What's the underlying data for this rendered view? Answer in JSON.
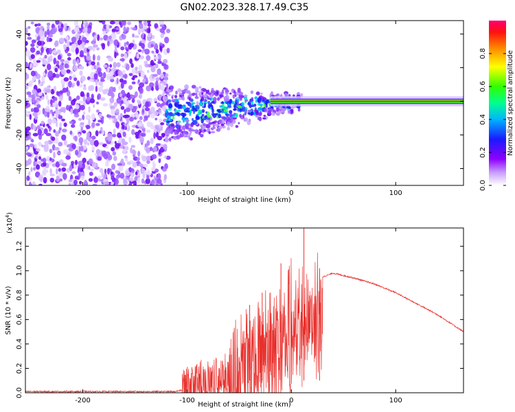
{
  "title": "GN02.2023.328.17.49.C35",
  "colors": {
    "snr_line": "#e8302c",
    "ridge": "#ff2020",
    "background": "#ffffff",
    "axis": "#000000"
  },
  "chart_data": [
    {
      "type": "heatmap",
      "name": "spectrogram",
      "xlabel": "Height of straight line (km)",
      "ylabel": "Frequency (Hz)",
      "xlim": [
        -255,
        165
      ],
      "ylim": [
        -50,
        48
      ],
      "xticks": [
        -200,
        -100,
        0,
        100
      ],
      "yticks": [
        -40,
        -20,
        0,
        20,
        40
      ],
      "xtick_labels": [
        "-200",
        "-100",
        "0",
        "100"
      ],
      "ytick_labels": [
        "-40",
        "-20",
        "0",
        "20",
        "40"
      ],
      "noise_region_x": [
        -255,
        -118
      ],
      "ridge": {
        "x": [
          -20,
          165
        ],
        "y": 0,
        "amplitude": 1.0
      },
      "colorbar": {
        "label": "Normalized spectral amplitude",
        "range": [
          0,
          1
        ],
        "ticks": [
          0.0,
          0.2,
          0.4,
          0.6,
          0.8
        ],
        "tick_labels": [
          "0.0",
          "0.2",
          "0.4",
          "0.6",
          "0.8"
        ],
        "colormap": [
          "#ffffff",
          "#8e00ff",
          "#1a1aff",
          "#00b4ff",
          "#00ff80",
          "#40ff00",
          "#ffff00",
          "#ff8000",
          "#ff0000",
          "#ff0080"
        ]
      }
    },
    {
      "type": "line",
      "name": "snr",
      "xlabel": "Height of straight line (km)",
      "ylabel": "SNR (10 * v/v)",
      "scale_label": "(x10",
      "scale_exponent": "4",
      "scale_suffix": ")",
      "xlim": [
        -255,
        165
      ],
      "ylim": [
        0,
        1.35
      ],
      "xticks": [
        -200,
        -100,
        0,
        100
      ],
      "yticks": [
        0.0,
        0.2,
        0.4,
        0.6,
        0.8,
        1.0,
        1.2
      ],
      "xtick_labels": [
        "-200",
        "-100",
        "0",
        "100"
      ],
      "ytick_labels": [
        "0.0",
        "0.2",
        "0.4",
        "0.6",
        "0.8",
        "1.0",
        "1.2"
      ],
      "series": [
        {
          "name": "SNR",
          "x": [
            -255,
            -200,
            -150,
            -110,
            -100,
            -90,
            -80,
            -70,
            -60,
            -50,
            -40,
            -30,
            -20,
            -10,
            0,
            10,
            20,
            30,
            40,
            50,
            60,
            80,
            100,
            120,
            140,
            165
          ],
          "y": [
            0.01,
            0.01,
            0.01,
            0.01,
            0.04,
            0.08,
            0.1,
            0.12,
            0.14,
            0.17,
            0.22,
            0.3,
            0.4,
            0.52,
            0.62,
            0.72,
            0.85,
            0.95,
            0.98,
            0.96,
            0.94,
            0.89,
            0.82,
            0.73,
            0.64,
            0.5
          ]
        }
      ],
      "spikes": [
        {
          "x": 12,
          "y": 1.35
        },
        {
          "x": -10,
          "y": 1.06
        },
        {
          "x": -28,
          "y": 0.82
        },
        {
          "x": -40,
          "y": 0.72
        },
        {
          "x": 27,
          "y": 1.02
        }
      ]
    }
  ]
}
